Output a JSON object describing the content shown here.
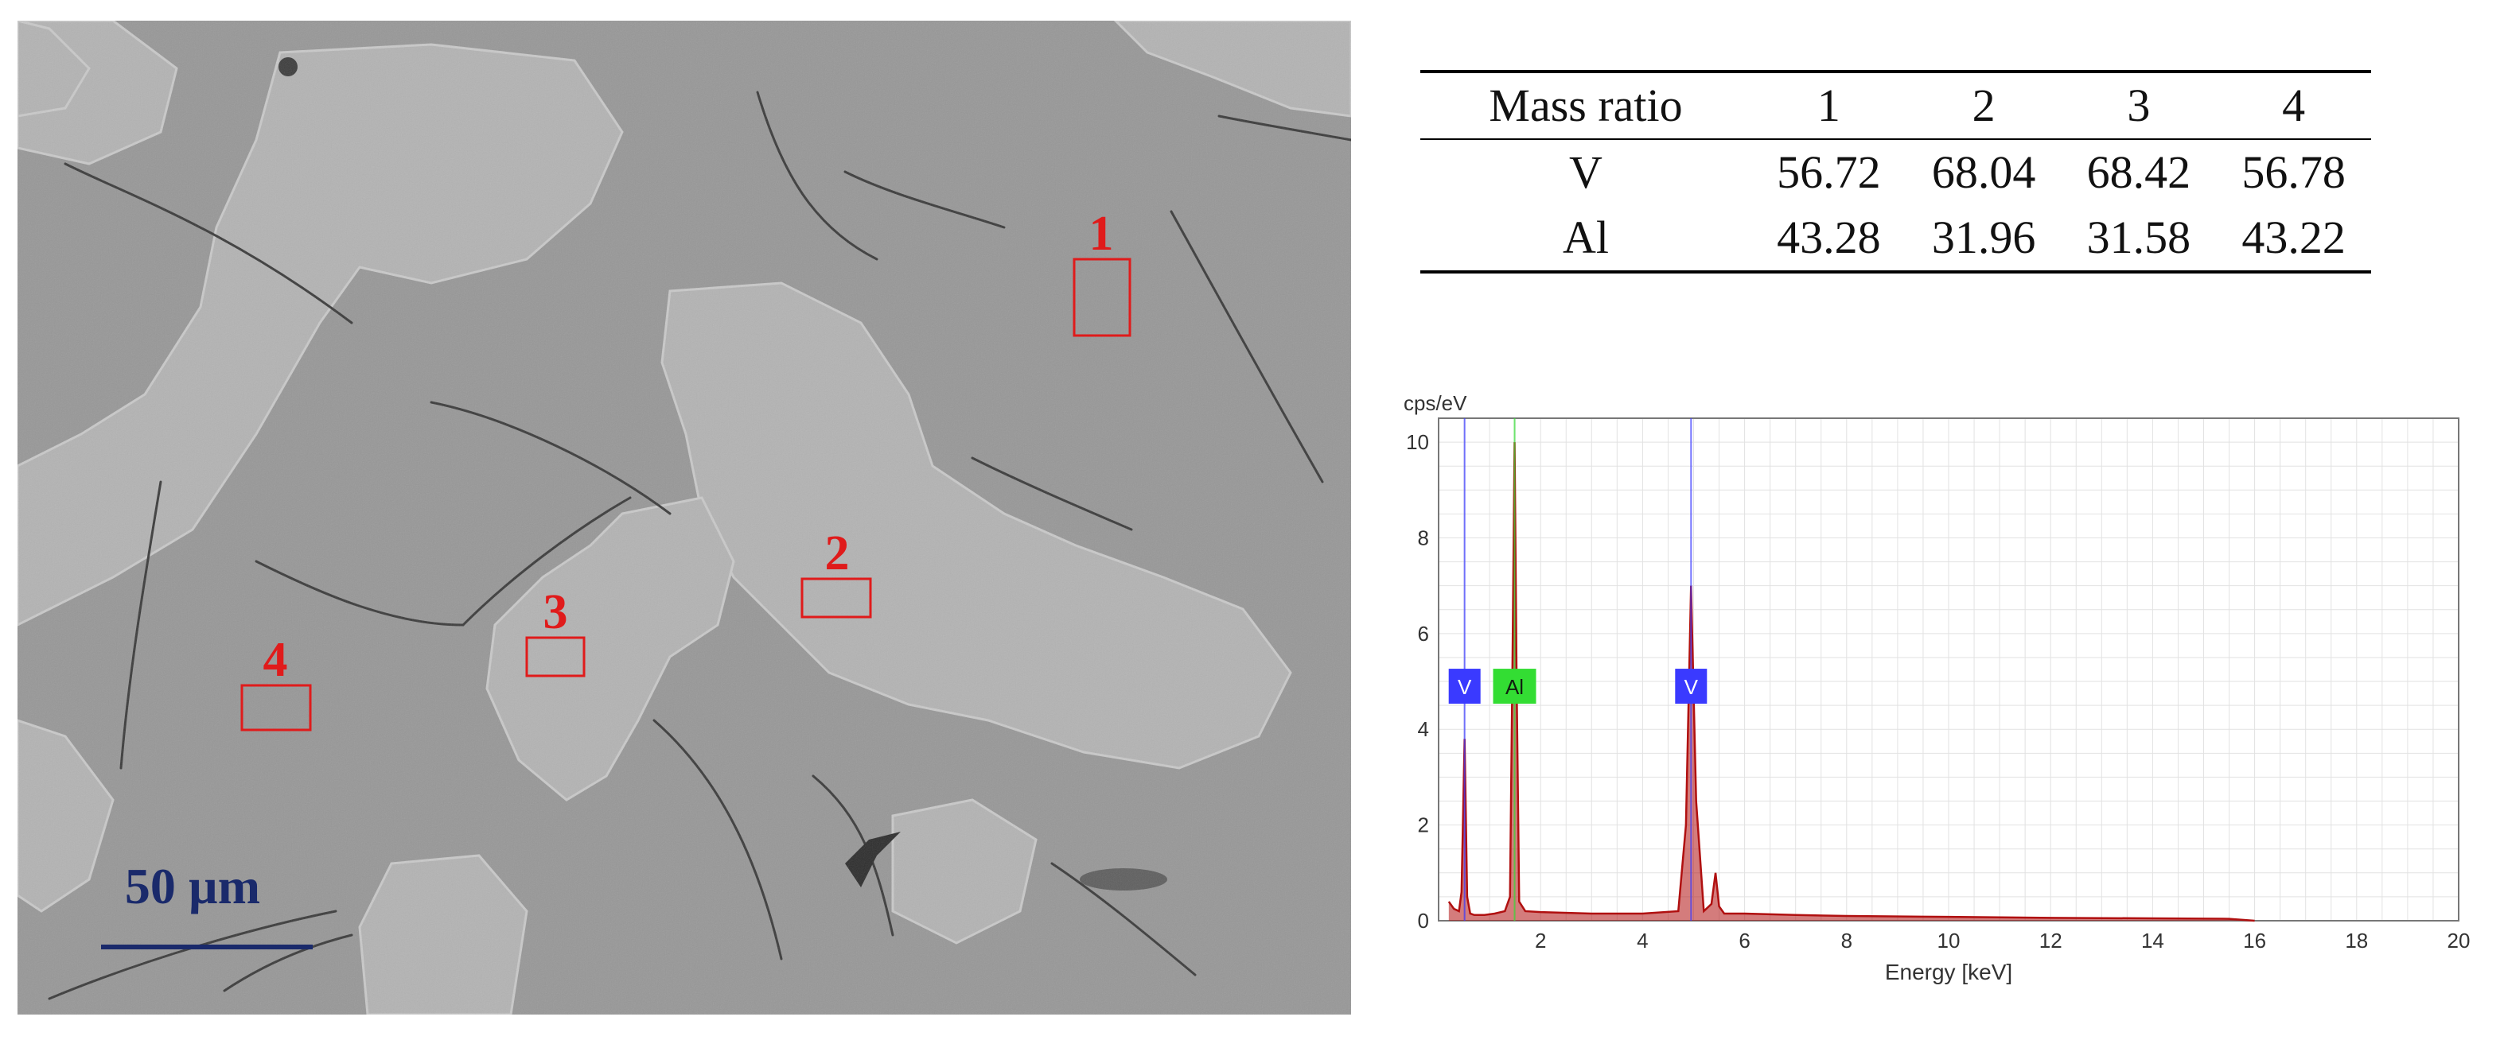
{
  "micrograph": {
    "scale_bar_label": "50 µm",
    "region_labels": [
      "1",
      "2",
      "3",
      "4"
    ],
    "marker_color": "#e01b1b",
    "scale_bar_color": "#1a2a6b"
  },
  "table": {
    "header": [
      "Mass ratio",
      "1",
      "2",
      "3",
      "4"
    ],
    "rows": [
      [
        "V",
        "56.72",
        "68.04",
        "68.42",
        "56.78"
      ],
      [
        "Al",
        "43.28",
        "31.96",
        "31.58",
        "43.22"
      ]
    ]
  },
  "chart_data": {
    "type": "line",
    "title": "",
    "xlabel": "Energy [keV]",
    "ylabel": "cps/eV",
    "xlim": [
      0,
      20
    ],
    "ylim": [
      0,
      10.5
    ],
    "x_ticks": [
      "2",
      "4",
      "6",
      "8",
      "10",
      "12",
      "14",
      "16",
      "18",
      "20"
    ],
    "y_ticks": [
      "0",
      "2",
      "4",
      "6",
      "8",
      "10"
    ],
    "grid": true,
    "series": [
      {
        "name": "",
        "color": "#b01010",
        "x": [
          0.2,
          0.3,
          0.4,
          0.45,
          0.51,
          0.56,
          0.62,
          0.7,
          0.9,
          1.1,
          1.3,
          1.4,
          1.45,
          1.49,
          1.53,
          1.58,
          1.7,
          2.0,
          3.0,
          4.0,
          4.7,
          4.85,
          4.95,
          5.05,
          5.2,
          5.35,
          5.43,
          5.5,
          5.6,
          6.0,
          7.0,
          8.0,
          10.0,
          12.0,
          14.0,
          15.5,
          16.0
        ],
        "y": [
          0.4,
          0.25,
          0.2,
          0.6,
          3.8,
          0.5,
          0.15,
          0.12,
          0.12,
          0.15,
          0.2,
          0.5,
          5.5,
          10.0,
          5.0,
          0.4,
          0.2,
          0.18,
          0.15,
          0.15,
          0.2,
          2.0,
          7.0,
          2.5,
          0.2,
          0.35,
          1.0,
          0.3,
          0.15,
          0.15,
          0.12,
          0.1,
          0.08,
          0.06,
          0.05,
          0.04,
          0.0
        ]
      }
    ],
    "element_labels": [
      {
        "text": "V",
        "energy": 0.51,
        "color": "#3a3aff"
      },
      {
        "text": "Al",
        "energy": 1.49,
        "color": "#33dd33"
      },
      {
        "text": "V",
        "energy": 4.95,
        "color": "#3a3aff"
      }
    ]
  }
}
